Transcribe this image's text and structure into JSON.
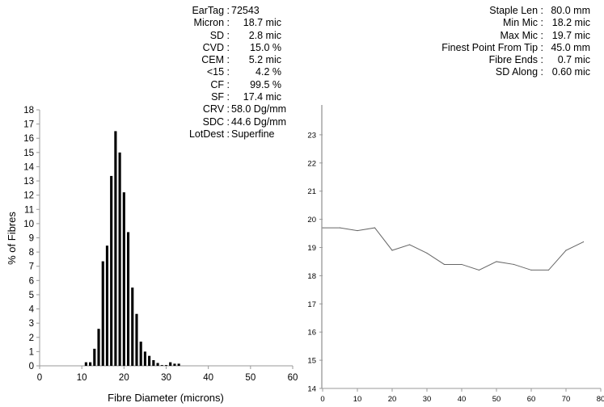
{
  "stats_left": [
    {
      "label": "EarTag :",
      "value": "72543",
      "align": "left"
    },
    {
      "label": "Micron :",
      "value": "18.7 mic"
    },
    {
      "label": "SD :",
      "value": "2.8 mic"
    },
    {
      "label": "CVD :",
      "value": "15.0 %"
    },
    {
      "label": "CEM :",
      "value": "5.2 mic"
    },
    {
      "label": "<15 :",
      "value": "4.2 %"
    },
    {
      "label": "CF :",
      "value": "99.5 %"
    },
    {
      "label": "SF :",
      "value": "17.4 mic"
    },
    {
      "label": "CRV :",
      "value": "58.0 Dg/mm"
    },
    {
      "label": "SDC :",
      "value": "44.6 Dg/mm"
    },
    {
      "label": "LotDest :",
      "value": "Superfine",
      "align": "left"
    }
  ],
  "stats_right": [
    {
      "label": "Staple Len :",
      "value": "80.0 mm"
    },
    {
      "label": "Min Mic :",
      "value": "18.2 mic"
    },
    {
      "label": "Max Mic :",
      "value": "19.7 mic"
    },
    {
      "label": "Finest Point From Tip :",
      "value": "45.0 mm"
    },
    {
      "label": "Fibre Ends :",
      "value": "0.7 mic"
    },
    {
      "label": "SD Along :",
      "value": "0.60 mic"
    }
  ],
  "chart_data": [
    {
      "type": "bar",
      "xlabel": "Fibre Diameter (microns)",
      "ylabel": "% of Fibres",
      "xlim": [
        0,
        60
      ],
      "ylim": [
        0,
        18
      ],
      "xticks": [
        0,
        10,
        20,
        30,
        40,
        50,
        60
      ],
      "yticks": [
        0,
        1,
        2,
        3,
        4,
        5,
        6,
        7,
        8,
        9,
        10,
        11,
        12,
        13,
        14,
        15,
        16,
        17,
        18
      ],
      "grid": false,
      "color": "#000000",
      "x": [
        11,
        12,
        13,
        14,
        15,
        16,
        17,
        18,
        19,
        20,
        21,
        22,
        23,
        24,
        25,
        26,
        27,
        28,
        29,
        30,
        31,
        32,
        33
      ],
      "values": [
        0.25,
        0.25,
        1.2,
        2.6,
        7.35,
        8.45,
        13.35,
        16.5,
        15.0,
        12.2,
        9.4,
        5.5,
        3.65,
        1.7,
        1.0,
        0.7,
        0.4,
        0.2,
        0.05,
        0.05,
        0.25,
        0.15,
        0.15
      ]
    },
    {
      "type": "line",
      "xlim": [
        0,
        80
      ],
      "ylim": [
        14,
        24
      ],
      "xticks": [
        0,
        10,
        20,
        30,
        40,
        50,
        60,
        70,
        80
      ],
      "yticks": [
        14,
        15,
        16,
        17,
        18,
        19,
        20,
        21,
        22,
        23
      ],
      "grid": false,
      "color": "#666666",
      "x": [
        0,
        5,
        10,
        15,
        20,
        25,
        30,
        35,
        40,
        45,
        50,
        55,
        60,
        65,
        70,
        75
      ],
      "y": [
        19.7,
        19.7,
        19.6,
        19.7,
        18.9,
        19.1,
        18.8,
        18.4,
        18.4,
        18.2,
        18.5,
        18.4,
        18.2,
        18.2,
        18.9,
        19.2
      ]
    }
  ]
}
